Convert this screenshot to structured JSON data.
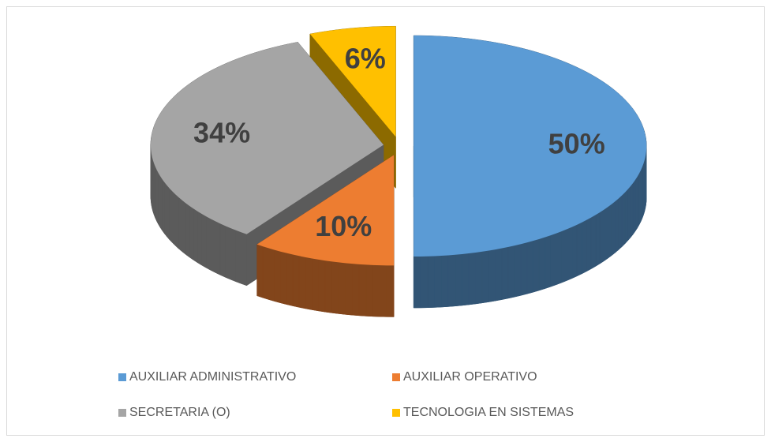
{
  "chart_data": {
    "type": "pie",
    "categories": [
      "AUXILIAR ADMINISTRATIVO",
      "AUXILIAR OPERATIVO",
      "SECRETARIA (O)",
      "TECNOLOGIA EN SISTEMAS"
    ],
    "values": [
      50,
      10,
      34,
      6
    ],
    "value_labels": [
      "50%",
      "10%",
      "34%",
      "6%"
    ],
    "colors": [
      "#5b9bd5",
      "#ed7d31",
      "#a5a5a5",
      "#ffc000"
    ],
    "legend": "bottom"
  }
}
